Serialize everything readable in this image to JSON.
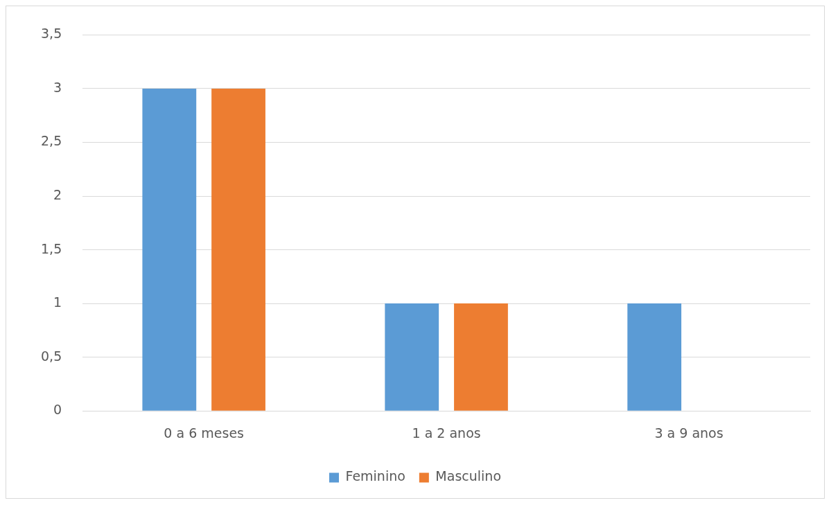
{
  "chart_data": {
    "type": "bar",
    "categories": [
      "0 a 6 meses",
      "1 a 2 anos",
      "3 a 9 anos"
    ],
    "series": [
      {
        "name": "Feminino",
        "color": "#5b9bd5",
        "values": [
          3,
          1,
          1
        ]
      },
      {
        "name": "Masculino",
        "color": "#ed7d31",
        "values": [
          3,
          1,
          0
        ]
      }
    ],
    "ylim": [
      0,
      3.5
    ],
    "yticks": [
      0,
      {
        "value": 0.5,
        "label": "0,5"
      },
      1,
      {
        "value": 1.5,
        "label": "1,5"
      },
      2,
      {
        "value": 2.5,
        "label": "2,5"
      },
      3,
      {
        "value": 3.5,
        "label": "3,5"
      }
    ],
    "grid": "y",
    "legend": "bottom"
  }
}
